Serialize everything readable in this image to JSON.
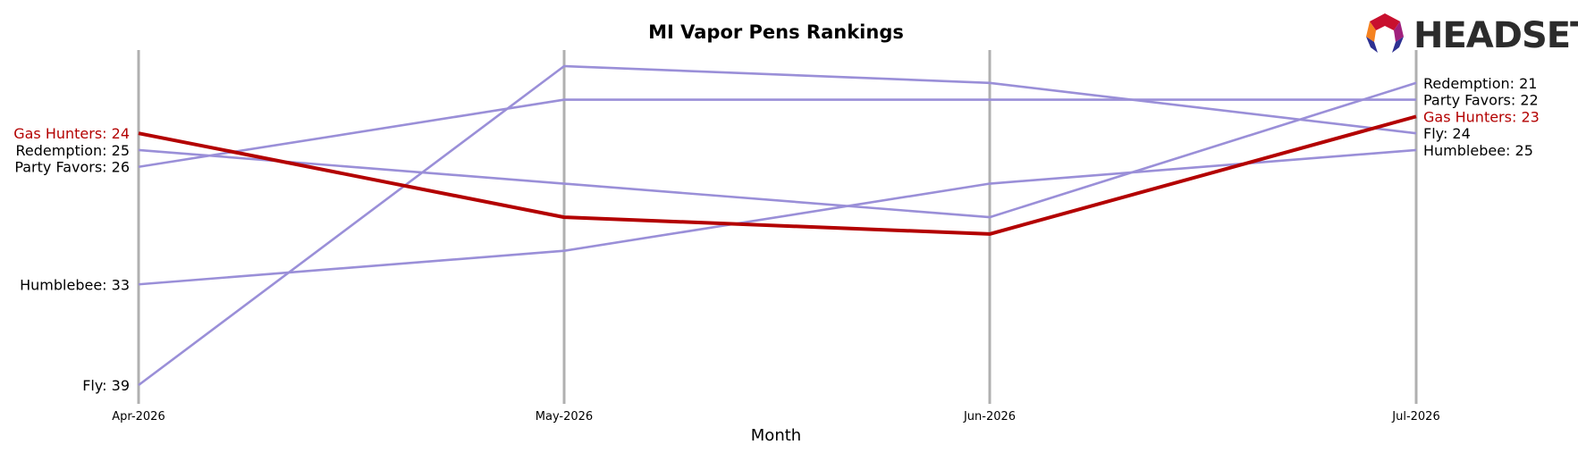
{
  "logo": {
    "text": "HEADSET"
  },
  "chart_data": {
    "type": "line",
    "title": "MI Vapor Pens Rankings",
    "xlabel": "Month",
    "ylabel": "",
    "categories": [
      "Apr-2026",
      "May-2026",
      "Jun-2026",
      "Jul-2026"
    ],
    "y_inverted": true,
    "ylim": [
      20,
      39
    ],
    "grid": "vertical lines at each month",
    "highlight_color": "#b30000",
    "other_color": "#9a8fd8",
    "series": [
      {
        "name": "Gas Hunters",
        "values": [
          24,
          29,
          30,
          23
        ],
        "highlight": true
      },
      {
        "name": "Redemption",
        "values": [
          25,
          27,
          29,
          21
        ],
        "highlight": false
      },
      {
        "name": "Party Favors",
        "values": [
          26,
          22,
          22,
          22
        ],
        "highlight": false
      },
      {
        "name": "Humblebee",
        "values": [
          33,
          31,
          27,
          25
        ],
        "highlight": false
      },
      {
        "name": "Fly",
        "values": [
          39,
          20,
          21,
          24
        ],
        "highlight": false
      }
    ]
  }
}
